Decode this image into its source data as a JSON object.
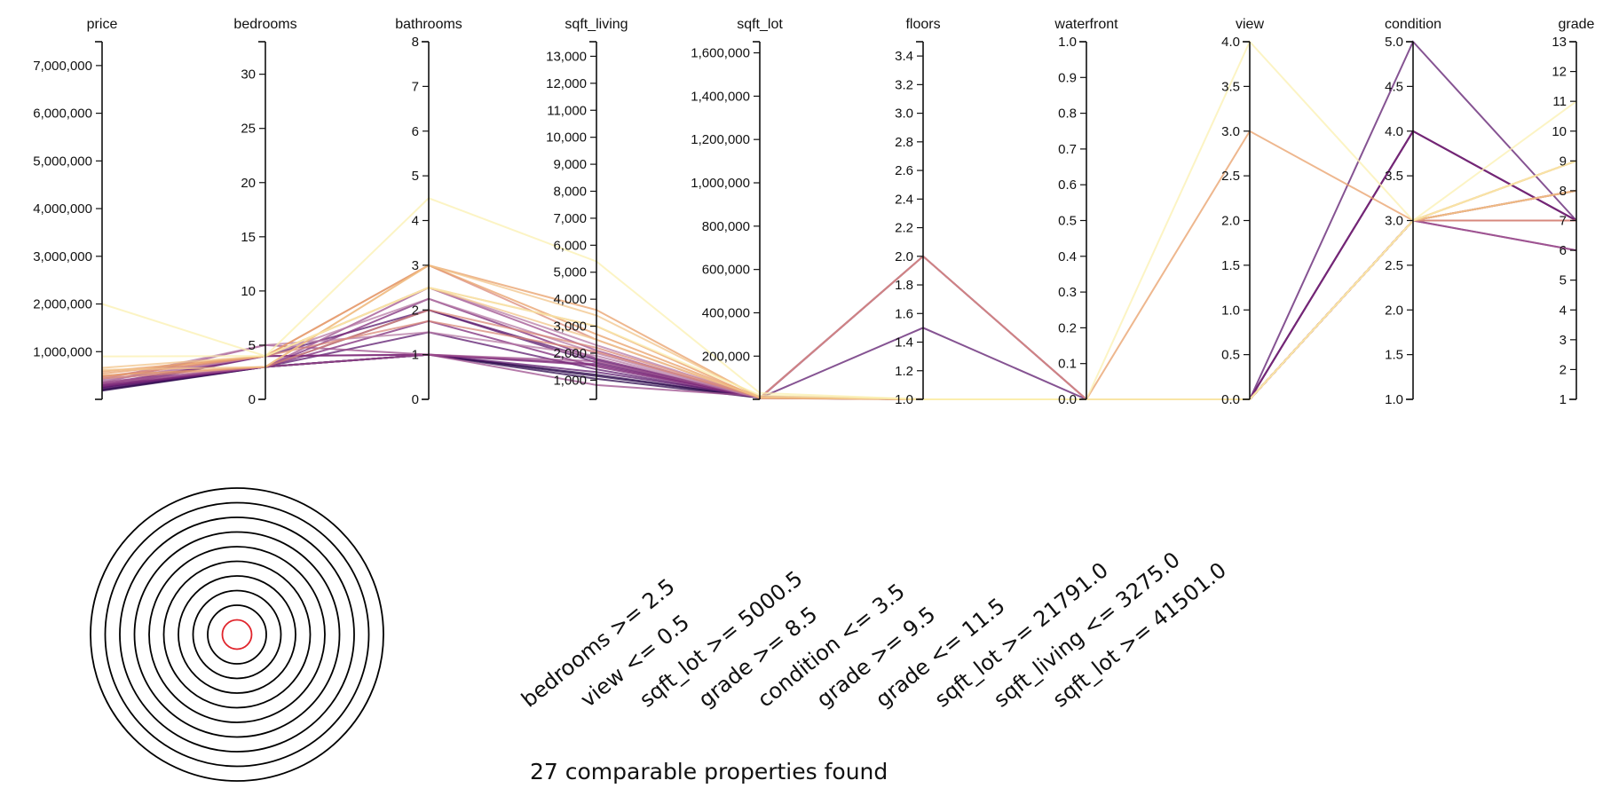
{
  "colors": {
    "axis": "#111111",
    "ring": "#000000",
    "center_ring": "#e0242b",
    "palette": [
      "#2d0a4e",
      "#5c1a6e",
      "#7e2a7a",
      "#9d4f8e",
      "#b77ba5",
      "#d98a7a",
      "#e89f68",
      "#f2c48a",
      "#fbf0b0"
    ]
  },
  "chart_data": {
    "type": "parallel-coordinates",
    "axes": [
      {
        "name": "price",
        "min": 0,
        "max": 7500000,
        "ticks": [
          1000000,
          2000000,
          3000000,
          4000000,
          5000000,
          6000000,
          7000000
        ]
      },
      {
        "name": "bedrooms",
        "min": 0,
        "max": 33,
        "ticks": [
          0,
          5,
          10,
          15,
          20,
          25,
          30
        ]
      },
      {
        "name": "bathrooms",
        "min": 0,
        "max": 8,
        "ticks": [
          0,
          1,
          2,
          3,
          4,
          5,
          6,
          7,
          8
        ]
      },
      {
        "name": "sqft_living",
        "min": 290,
        "max": 13540,
        "ticks": [
          1000,
          2000,
          3000,
          4000,
          5000,
          6000,
          7000,
          8000,
          9000,
          10000,
          11000,
          12000,
          13000
        ]
      },
      {
        "name": "sqft_lot",
        "min": 520,
        "max": 1651359,
        "ticks": [
          200000,
          400000,
          600000,
          800000,
          1000000,
          1200000,
          1400000,
          1600000
        ]
      },
      {
        "name": "floors",
        "min": 1,
        "max": 3.5,
        "ticks": [
          1.0,
          1.2,
          1.4,
          1.6,
          1.8,
          2.0,
          2.2,
          2.4,
          2.6,
          2.8,
          3.0,
          3.2,
          3.4
        ]
      },
      {
        "name": "waterfront",
        "min": 0,
        "max": 1,
        "ticks": [
          0.0,
          0.1,
          0.2,
          0.3,
          0.4,
          0.5,
          0.6,
          0.7,
          0.8,
          0.9,
          1.0
        ]
      },
      {
        "name": "view",
        "min": 0,
        "max": 4,
        "ticks": [
          0.0,
          0.5,
          1.0,
          1.5,
          2.0,
          2.5,
          3.0,
          3.5,
          4.0
        ]
      },
      {
        "name": "condition",
        "min": 1,
        "max": 5,
        "ticks": [
          1.0,
          1.5,
          2.0,
          2.5,
          3.0,
          3.5,
          4.0,
          4.5,
          5.0
        ]
      },
      {
        "name": "grade",
        "min": 1,
        "max": 13,
        "ticks": [
          1,
          2,
          3,
          4,
          5,
          6,
          7,
          8,
          9,
          10,
          11,
          12,
          13
        ]
      }
    ],
    "records": [
      {
        "values": [
          180000,
          3,
          1,
          1050,
          7500,
          1,
          0,
          0,
          3,
          7
        ],
        "color_index": 0
      },
      {
        "values": [
          195000,
          3,
          1,
          1200,
          8000,
          1,
          0,
          0,
          4,
          7
        ],
        "color_index": 0
      },
      {
        "values": [
          210000,
          3,
          1,
          1150,
          9500,
          1,
          0,
          0,
          3,
          7
        ],
        "color_index": 0
      },
      {
        "values": [
          230000,
          3,
          1.5,
          1400,
          7200,
          1,
          0,
          0,
          4,
          7
        ],
        "color_index": 1
      },
      {
        "values": [
          240000,
          4,
          2,
          1650,
          10000,
          1,
          0,
          0,
          3,
          7
        ],
        "color_index": 1
      },
      {
        "values": [
          255000,
          3,
          1,
          1300,
          12000,
          1,
          0,
          0,
          5,
          7
        ],
        "color_index": 1
      },
      {
        "values": [
          260000,
          3,
          2,
          1750,
          6500,
          1.5,
          0,
          0,
          4,
          7
        ],
        "color_index": 1
      },
      {
        "values": [
          275000,
          3,
          1.75,
          1500,
          8200,
          1,
          0,
          0,
          3,
          6
        ],
        "color_index": 2
      },
      {
        "values": [
          290000,
          4,
          1,
          1600,
          9000,
          1,
          0,
          0,
          3,
          7
        ],
        "color_index": 2
      },
      {
        "values": [
          300000,
          3,
          2.25,
          1800,
          7000,
          2,
          0,
          0,
          3,
          7
        ],
        "color_index": 2
      },
      {
        "values": [
          320000,
          4,
          1,
          1550,
          11000,
          1,
          0,
          0,
          4,
          7
        ],
        "color_index": 2
      },
      {
        "values": [
          335000,
          3,
          2.5,
          2100,
          5000,
          2,
          0,
          0,
          3,
          8
        ],
        "color_index": 3
      },
      {
        "values": [
          350000,
          5,
          1,
          1700,
          9800,
          1,
          0,
          0,
          3,
          7
        ],
        "color_index": 3
      },
      {
        "values": [
          365000,
          3,
          1,
          820,
          15000,
          1,
          0,
          0,
          3,
          6
        ],
        "color_index": 3
      },
      {
        "values": [
          380000,
          4,
          2.25,
          2000,
          7500,
          1,
          0,
          0,
          3,
          8
        ],
        "color_index": 4
      },
      {
        "values": [
          400000,
          4,
          2.5,
          2300,
          8000,
          2,
          0,
          0,
          3,
          8
        ],
        "color_index": 4
      },
      {
        "values": [
          420000,
          5,
          1.5,
          1900,
          6000,
          1,
          0,
          0,
          3,
          7
        ],
        "color_index": 4
      },
      {
        "values": [
          440000,
          3,
          2,
          2200,
          9000,
          1,
          0,
          0,
          3,
          7
        ],
        "color_index": 5
      },
      {
        "values": [
          460000,
          4,
          3,
          2500,
          7000,
          2,
          0,
          0,
          3,
          8
        ],
        "color_index": 5
      },
      {
        "values": [
          480000,
          4,
          1.75,
          2050,
          10000,
          1,
          0,
          0,
          3,
          7
        ],
        "color_index": 5
      },
      {
        "values": [
          500000,
          3,
          3,
          2700,
          8500,
          1,
          0,
          3,
          3,
          8
        ],
        "color_index": 6
      },
      {
        "values": [
          540000,
          4,
          2.5,
          3000,
          6000,
          1,
          0,
          0,
          3,
          9
        ],
        "color_index": 6
      },
      {
        "values": [
          580000,
          4,
          3,
          3600,
          9000,
          1,
          0,
          0,
          3,
          9
        ],
        "color_index": 6
      },
      {
        "values": [
          620000,
          3,
          3,
          3400,
          12000,
          1,
          0,
          0,
          3,
          9
        ],
        "color_index": 7
      },
      {
        "values": [
          660000,
          4,
          2.5,
          2500,
          10000,
          1,
          0,
          0,
          3,
          8
        ],
        "color_index": 7
      },
      {
        "values": [
          900000,
          4,
          2.5,
          3000,
          20000,
          1,
          0,
          0,
          3,
          9
        ],
        "color_index": 8
      },
      {
        "values": [
          2000000,
          4,
          4.5,
          5400,
          30000,
          1,
          0,
          4,
          3,
          11
        ],
        "color_index": 8
      }
    ]
  },
  "rules": [
    "bedrooms >= 2.5",
    "view <= 0.5",
    "sqft_lot >= 5000.5",
    "grade >= 8.5",
    "condition <= 3.5",
    "grade >= 9.5",
    "grade <= 11.5",
    "sqft_lot >= 21791.0",
    "sqft_living <= 3275.0",
    "sqft_lot >= 41501.0"
  ],
  "target": {
    "ring_count": 10
  },
  "summary": "27 comparable properties found"
}
